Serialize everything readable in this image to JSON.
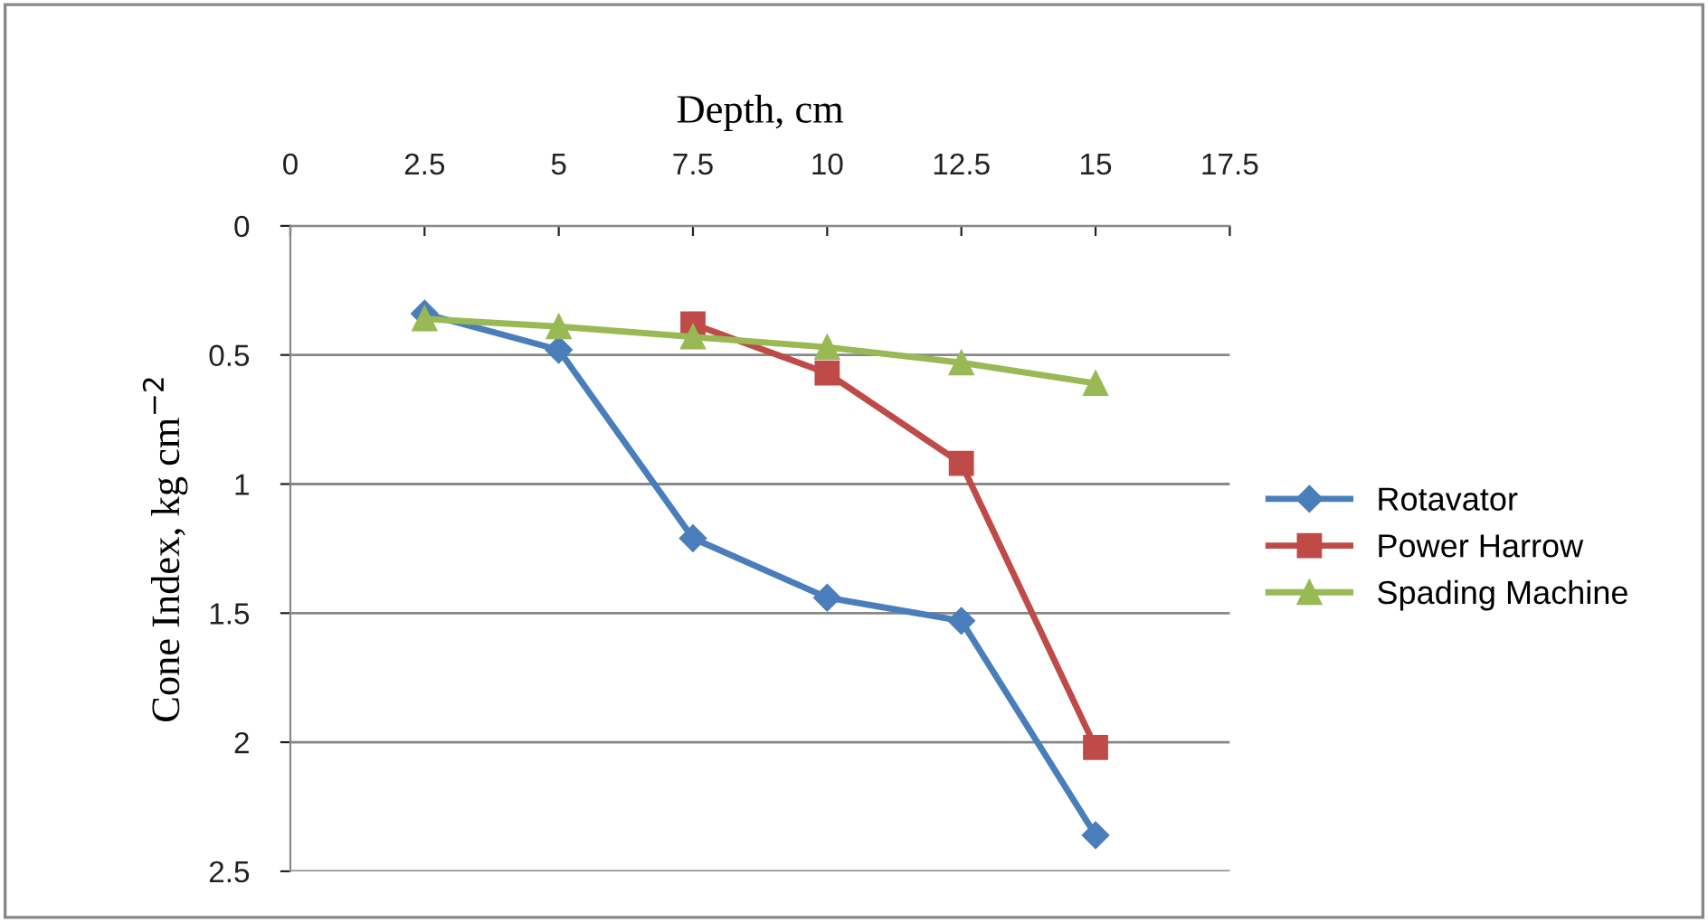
{
  "chart_data": {
    "type": "line",
    "xlabel": "Depth, cm",
    "ylabel": "Cone Index, kg cm$^{−2}$",
    "xlim": [
      0,
      17.5
    ],
    "xticks": [
      0,
      2.5,
      5,
      7.5,
      10,
      12.5,
      15,
      17.5
    ],
    "ylim": [
      2.5,
      0
    ],
    "yticks": [
      0,
      0.5,
      1,
      1.5,
      2,
      2.5
    ],
    "grid": "y",
    "legend": "right",
    "line_style": "solid",
    "series": [
      {
        "name": "Rotavator",
        "color": "#4a7ebb",
        "marker": "diamond",
        "x": [
          2.5,
          5,
          7.5,
          10,
          12.5,
          15
        ],
        "values": [
          0.34,
          0.48,
          1.21,
          1.44,
          1.53,
          2.36
        ]
      },
      {
        "name": "Power Harrow",
        "color": "#be4b48",
        "marker": "square",
        "x": [
          7.5,
          10,
          12.5,
          15
        ],
        "values": [
          0.38,
          0.57,
          0.92,
          2.02
        ]
      },
      {
        "name": "Spading Machine",
        "color": "#98b954",
        "marker": "triangle",
        "x": [
          2.5,
          5,
          7.5,
          10,
          12.5,
          15
        ],
        "values": [
          0.36,
          0.39,
          0.43,
          0.47,
          0.53,
          0.61
        ]
      }
    ]
  }
}
